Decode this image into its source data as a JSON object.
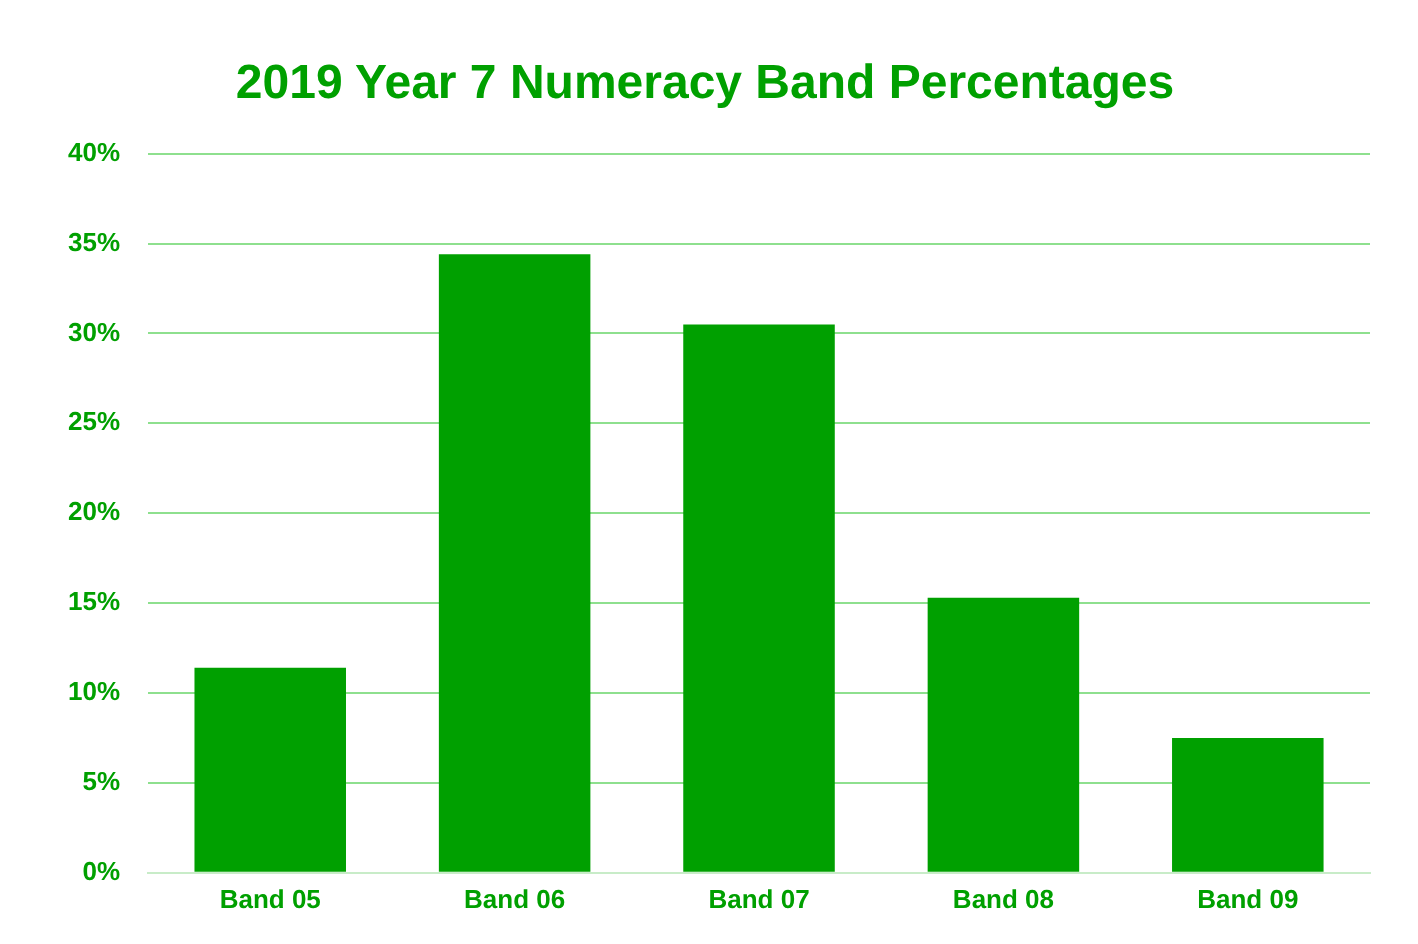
{
  "chart_data": {
    "type": "bar",
    "title": "2019 Year 7 Numeracy Band Percentages",
    "categories": [
      "Band 05",
      "Band 06",
      "Band 07",
      "Band 08",
      "Band 09"
    ],
    "values": [
      11.4,
      34.4,
      30.5,
      15.3,
      7.5
    ],
    "color": "#00a000",
    "ylim": [
      0,
      40
    ],
    "yticks": [
      {
        "value": 0,
        "label": "0%"
      },
      {
        "value": 5,
        "label": "5%"
      },
      {
        "value": 10,
        "label": "10%"
      },
      {
        "value": 15,
        "label": "15%"
      },
      {
        "value": 20,
        "label": "20%"
      },
      {
        "value": 25,
        "label": "25%"
      },
      {
        "value": 30,
        "label": "30%"
      },
      {
        "value": 35,
        "label": "35%"
      },
      {
        "value": 40,
        "label": "40%"
      }
    ],
    "grid": "y",
    "legend": false
  }
}
